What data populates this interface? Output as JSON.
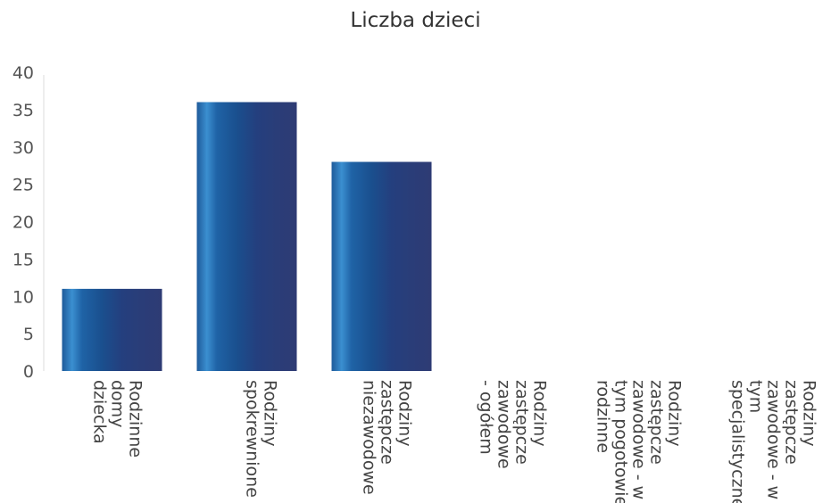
{
  "chart_data": {
    "type": "bar",
    "title": "Liczba dzieci",
    "xlabel": "",
    "ylabel": "",
    "ylim": [
      0,
      40
    ],
    "yticks": [
      0,
      5,
      10,
      15,
      20,
      25,
      30,
      35,
      40
    ],
    "grid": false,
    "legend": "none",
    "bar_color": "#1f4e8c",
    "categories": [
      [
        "Rodzinne",
        "domy",
        "dziecka"
      ],
      [
        "Rodziny",
        "spokrewnione"
      ],
      [
        "Rodziny",
        "zastępcze",
        "niezawodowe"
      ],
      [
        "Rodziny",
        "zastępcze",
        "zawodowe",
        "- ogółem"
      ],
      [
        "Rodziny",
        "zastępcze",
        "zawodowe - w",
        "tym pogotowie",
        "rodzinne"
      ],
      [
        "Rodziny",
        "zastępcze",
        "zawodowe - w",
        "tym",
        "specjalistyczne"
      ]
    ],
    "values": [
      11,
      36,
      28,
      0,
      0,
      0
    ]
  }
}
